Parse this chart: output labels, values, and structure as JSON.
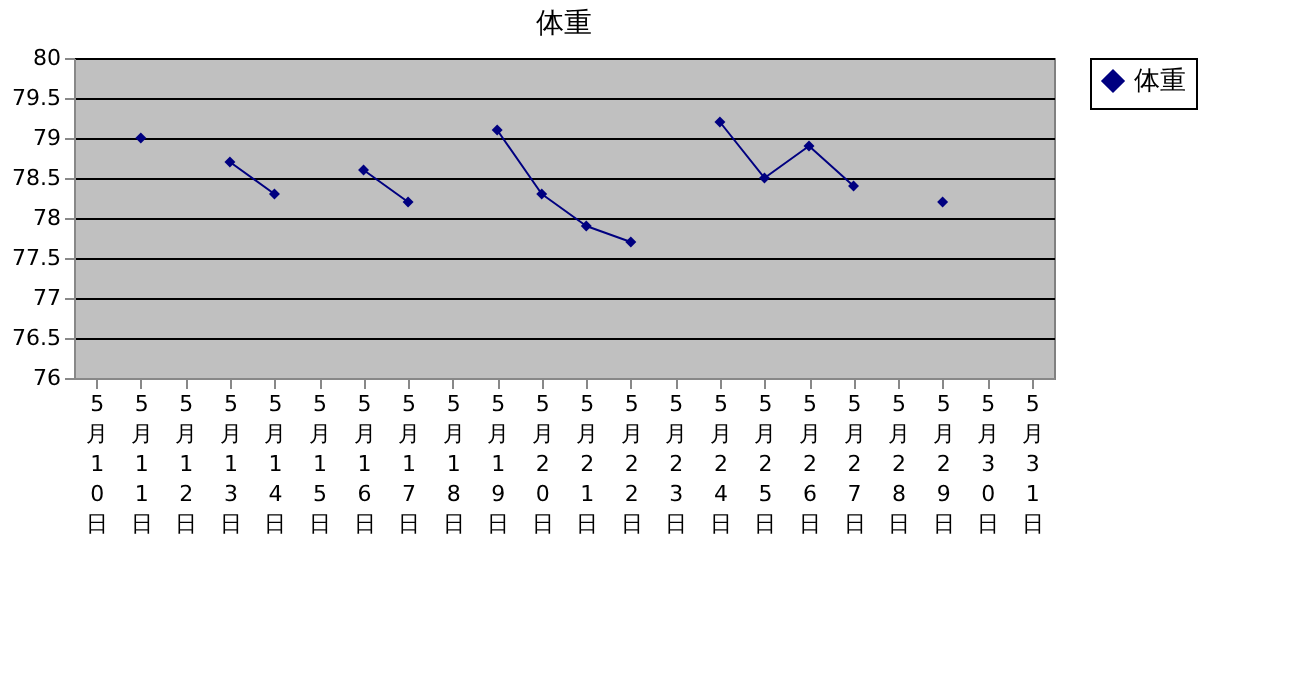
{
  "chart_data": {
    "type": "line",
    "title": "体重",
    "categories": [
      "5月10日",
      "5月11日",
      "5月12日",
      "5月13日",
      "5月14日",
      "5月15日",
      "5月16日",
      "5月17日",
      "5月18日",
      "5月19日",
      "5月20日",
      "5月21日",
      "5月22日",
      "5月23日",
      "5月24日",
      "5月25日",
      "5月26日",
      "5月27日",
      "5月28日",
      "5月29日",
      "5月30日",
      "5月31日"
    ],
    "series": [
      {
        "name": "体重",
        "color": "#000080",
        "values": [
          null,
          79.0,
          null,
          78.7,
          78.3,
          null,
          78.6,
          78.2,
          null,
          79.1,
          78.3,
          77.9,
          77.7,
          null,
          79.2,
          78.5,
          78.9,
          78.4,
          null,
          78.2,
          null,
          null
        ]
      }
    ],
    "ylim": [
      76,
      80
    ],
    "yticks": [
      76,
      76.5,
      77,
      77.5,
      78,
      78.5,
      79,
      79.5,
      80
    ],
    "grid": "y",
    "legend": "right",
    "marker": "diamond",
    "line_style": "solid"
  }
}
